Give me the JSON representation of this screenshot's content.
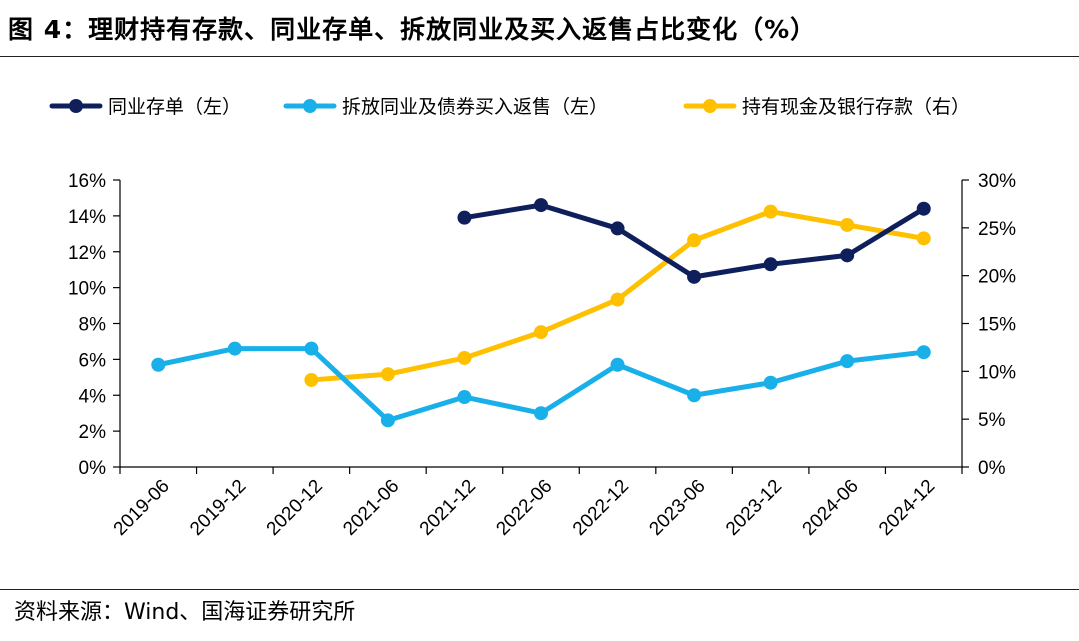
{
  "header": {
    "title": "图 4：理财持有存款、同业存单、拆放同业及买入返售占比变化（%）"
  },
  "footer": {
    "source": "资料来源：Wind、国海证券研究所"
  },
  "colors": {
    "navy": "#0f1f5c",
    "sky": "#19b0ea",
    "gold": "#ffc000"
  },
  "chart_data": {
    "type": "line",
    "title": "理财持有存款、同业存单、拆放同业及买入返售占比变化（%）",
    "x": [
      "2019-06",
      "2019-12",
      "2020-12",
      "2021-06",
      "2021-12",
      "2022-06",
      "2022-12",
      "2023-06",
      "2023-12",
      "2024-06",
      "2024-12"
    ],
    "y_left": {
      "min": 0,
      "max": 16,
      "ticks": [
        0,
        2,
        4,
        6,
        8,
        10,
        12,
        14,
        16
      ],
      "tick_labels": [
        "0%",
        "2%",
        "4%",
        "6%",
        "8%",
        "10%",
        "12%",
        "14%",
        "16%"
      ]
    },
    "y_right": {
      "min": 0,
      "max": 30,
      "ticks": [
        0,
        5,
        10,
        15,
        20,
        25,
        30
      ],
      "tick_labels": [
        "0%",
        "5%",
        "10%",
        "15%",
        "20%",
        "25%",
        "30%"
      ]
    },
    "legend_position": "top",
    "series": [
      {
        "name": "同业存单（左）",
        "axis": "left",
        "color": "#0f1f5c",
        "values": [
          null,
          null,
          null,
          null,
          13.9,
          14.6,
          13.3,
          10.6,
          11.3,
          11.8,
          14.4
        ]
      },
      {
        "name": "拆放同业及债券买入返售（左）",
        "axis": "left",
        "color": "#19b0ea",
        "values": [
          5.7,
          6.6,
          6.6,
          2.6,
          3.9,
          3.0,
          5.7,
          4.0,
          4.7,
          5.9,
          6.4
        ]
      },
      {
        "name": "持有现金及银行存款（右）",
        "axis": "right",
        "color": "#ffc000",
        "values": [
          null,
          null,
          9.1,
          9.7,
          11.4,
          14.1,
          17.5,
          23.7,
          26.7,
          25.3,
          23.9
        ]
      }
    ]
  }
}
